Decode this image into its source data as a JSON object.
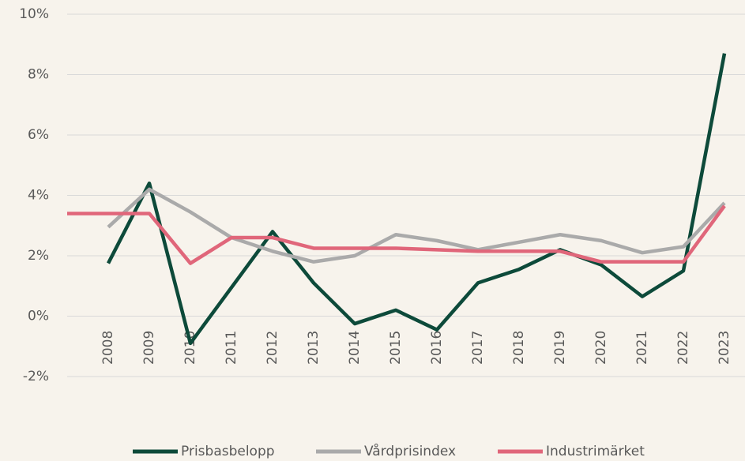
{
  "chart_data": {
    "type": "line",
    "categories": [
      null,
      "2008",
      "2009",
      "2010",
      "2011",
      "2012",
      "2013",
      "2014",
      "2015",
      "2016",
      "2017",
      "2018",
      "2019",
      "2020",
      "2021",
      "2022",
      "2023"
    ],
    "series": [
      {
        "name": "Prisbasbelopp",
        "color": "#0d4a3a",
        "values": [
          null,
          1.75,
          4.4,
          -0.9,
          0.95,
          2.8,
          1.1,
          -0.25,
          0.2,
          -0.45,
          1.1,
          1.55,
          2.2,
          1.7,
          0.65,
          1.5,
          8.7
        ]
      },
      {
        "name": "Vårdprisindex",
        "color": "#aaaaaa",
        "values": [
          null,
          2.95,
          4.2,
          3.45,
          2.6,
          2.15,
          1.8,
          2.0,
          2.7,
          2.5,
          2.2,
          2.45,
          2.7,
          2.5,
          2.1,
          2.3,
          3.75
        ]
      },
      {
        "name": "Industrimärket",
        "color": "#e0667a",
        "values": [
          3.4,
          3.4,
          3.4,
          1.75,
          2.6,
          2.6,
          2.25,
          2.25,
          2.25,
          2.2,
          2.15,
          2.15,
          2.15,
          1.8,
          1.8,
          1.8,
          3.65
        ]
      }
    ],
    "ylim": [
      -2,
      10
    ],
    "yticks": [
      {
        "value": -2,
        "label": "-2%"
      },
      {
        "value": 0,
        "label": "0%"
      },
      {
        "value": 2,
        "label": "2%"
      },
      {
        "value": 4,
        "label": "4%"
      },
      {
        "value": 6,
        "label": "6%"
      },
      {
        "value": 8,
        "label": "8%"
      },
      {
        "value": 10,
        "label": "10%"
      }
    ],
    "grid": true,
    "legend": "bottom"
  }
}
